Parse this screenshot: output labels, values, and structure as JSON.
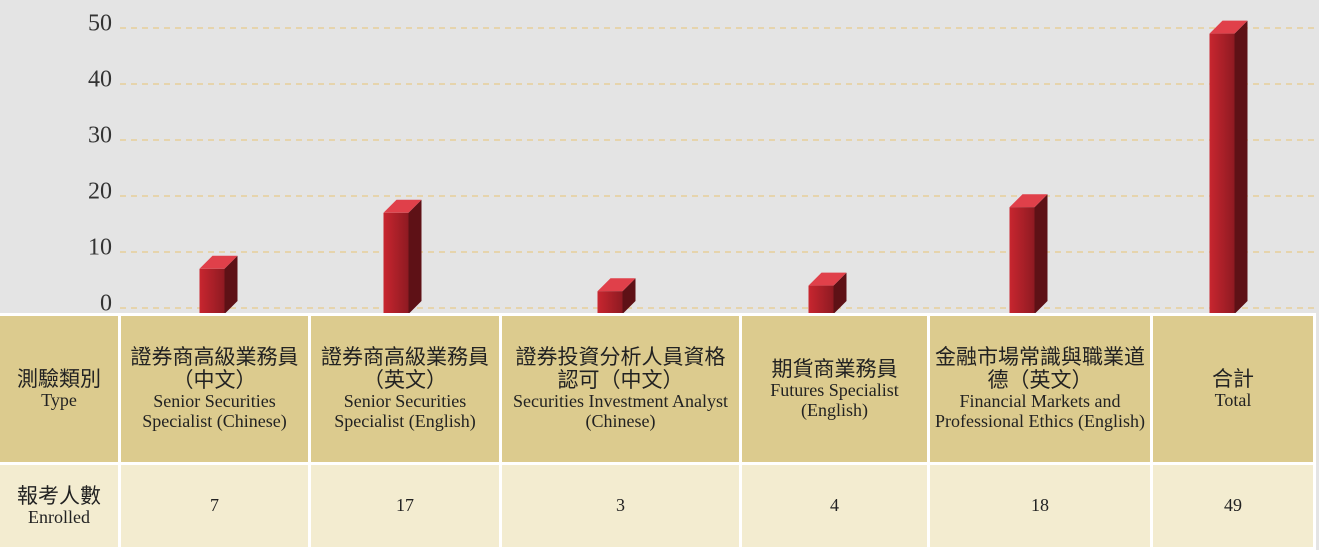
{
  "chart_data": {
    "type": "bar",
    "categories": [
      "證券商高級業務員（中文）",
      "證券商高級業務員（英文）",
      "證券投資分析人員資格認可（中文）",
      "期貨商業務員",
      "金融市場常識與職業道德（英文）",
      "合計"
    ],
    "categories_en": [
      "Senior Securities Specialist (Chinese)",
      "Senior Securities Specialist (English)",
      "Securities Investment Analyst (Chinese)",
      "Futures Specialist (English)",
      "Financial Markets and Professional Ethics (English)",
      "Total"
    ],
    "values": [
      7,
      17,
      3,
      4,
      18,
      49
    ],
    "color": "#b01f2a",
    "ylim": [
      0,
      50
    ],
    "yticks": [
      0,
      10,
      20,
      30,
      40,
      50
    ],
    "grid": true
  },
  "table": {
    "type_header": {
      "zh": "測驗類別",
      "en": "Type"
    },
    "enrolled_header": {
      "zh": "報考人數",
      "en": "Enrolled"
    }
  }
}
